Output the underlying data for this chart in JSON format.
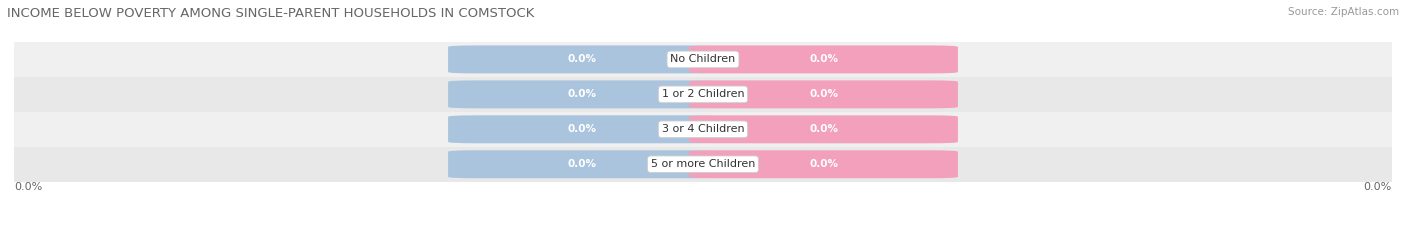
{
  "title": "INCOME BELOW POVERTY AMONG SINGLE-PARENT HOUSEHOLDS IN COMSTOCK",
  "source": "Source: ZipAtlas.com",
  "categories": [
    "No Children",
    "1 or 2 Children",
    "3 or 4 Children",
    "5 or more Children"
  ],
  "single_father_values": [
    0.0,
    0.0,
    0.0,
    0.0
  ],
  "single_mother_values": [
    0.0,
    0.0,
    0.0,
    0.0
  ],
  "father_color": "#aac4de",
  "mother_color": "#f2a0bb",
  "row_bg_colors": [
    "#f0f0f0",
    "#e8e8e8"
  ],
  "title_fontsize": 9.5,
  "source_fontsize": 7.5,
  "label_fontsize": 8,
  "category_fontsize": 8,
  "value_fontsize": 7.5,
  "axis_label_left": "0.0%",
  "axis_label_right": "0.0%"
}
